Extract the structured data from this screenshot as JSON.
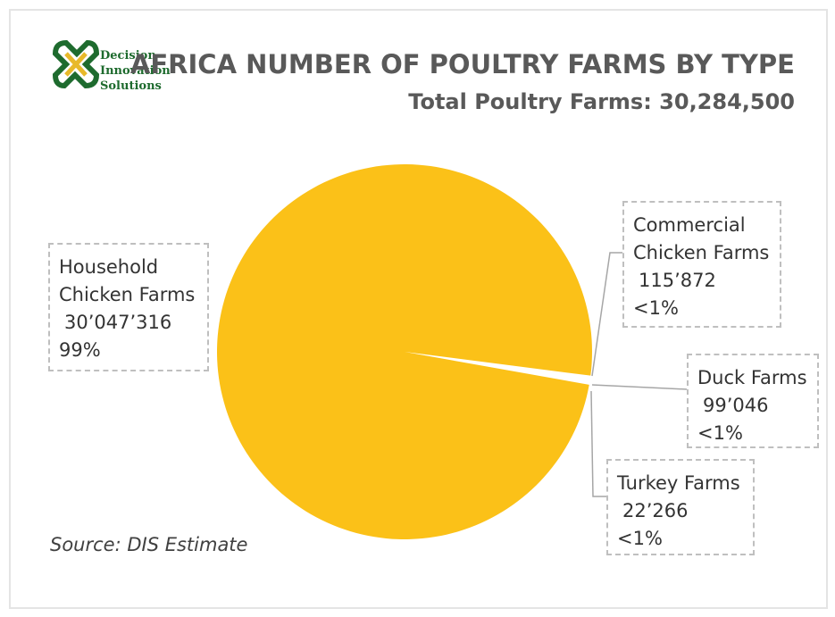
{
  "chart_data": {
    "type": "pie",
    "title": "AFRICA NUMBER OF POULTRY FARMS BY TYPE",
    "subtitle": "Total Poultry Farms: 30,284,500",
    "logo_text": [
      "Decision",
      "Innovation",
      "Solutions"
    ],
    "categories": [
      "Household Chicken Farms",
      "Commercial Chicken Farms",
      "Duck Farms",
      "Turkey Farms"
    ],
    "values": [
      30047316,
      115872,
      99046,
      22266
    ],
    "value_labels": [
      "30’047’316",
      "115’872",
      "99’046",
      "22’266"
    ],
    "percent_labels": [
      "99%",
      "<1%",
      "<1%",
      "<1%"
    ],
    "colors": [
      "#fbc118",
      "#ffffff",
      "#ffffff",
      "#ffffff"
    ],
    "source": "Source: DIS Estimate"
  }
}
